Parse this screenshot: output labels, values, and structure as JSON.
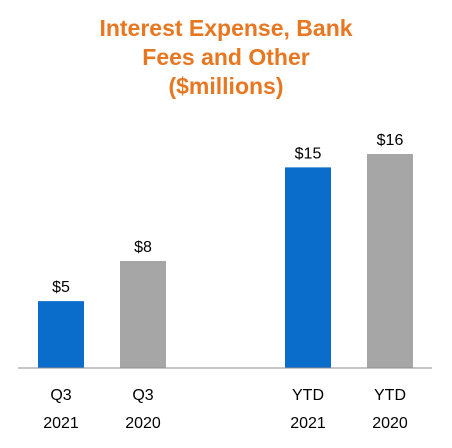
{
  "title": {
    "lines": [
      "Interest Expense, Bank",
      "Fees and Other",
      "($millions)"
    ]
  },
  "chart_data": {
    "type": "bar",
    "title": "Interest Expense, Bank Fees and Other ($millions)",
    "categories": [
      {
        "line1": "Q3",
        "line2": "2021"
      },
      {
        "line1": "Q3",
        "line2": "2020"
      },
      {
        "line1": "YTD",
        "line2": "2021"
      },
      {
        "line1": "YTD",
        "line2": "2020"
      }
    ],
    "values": [
      5,
      8,
      15,
      16
    ],
    "data_labels": [
      "$5",
      "$8",
      "$15",
      "$16"
    ],
    "bar_colors": [
      "#0a6ccb",
      "#a6a6a6",
      "#0a6ccb",
      "#a6a6a6"
    ],
    "ylim": [
      0,
      16
    ],
    "grid": false,
    "legend": "none",
    "xlabel": "",
    "ylabel": ""
  },
  "colors": {
    "title": "#e87722",
    "axis": "#8c8c8c",
    "label_text": "#000000"
  }
}
